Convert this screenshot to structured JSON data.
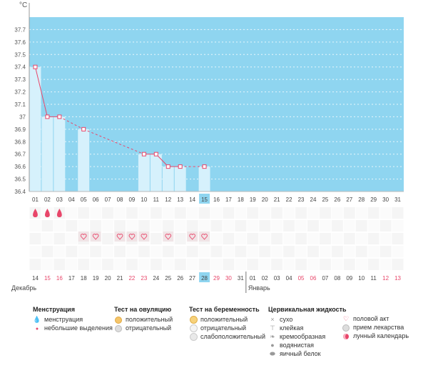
{
  "chart_data": {
    "type": "line",
    "title": "",
    "ylabel": "°C",
    "ylim": [
      36.4,
      37.8
    ],
    "yticks": [
      "36.4",
      "36.5",
      "36.6",
      "36.7",
      "36.8",
      "36.9",
      "37",
      "37.1",
      "37.2",
      "37.3",
      "37.4",
      "37.5",
      "37.6",
      "37.7"
    ],
    "cycle_days": [
      "01",
      "02",
      "03",
      "04",
      "05",
      "06",
      "07",
      "08",
      "09",
      "10",
      "11",
      "12",
      "13",
      "14",
      "15",
      "16",
      "17",
      "18",
      "19",
      "20",
      "21",
      "22",
      "23",
      "24",
      "25",
      "26",
      "27",
      "28",
      "29",
      "30",
      "31"
    ],
    "current_day": "15",
    "temperatures": [
      37.4,
      37.0,
      37.0,
      null,
      36.9,
      null,
      null,
      null,
      null,
      36.7,
      36.7,
      36.6,
      36.6,
      null,
      36.6,
      null,
      null,
      null,
      null,
      null,
      null,
      null,
      null,
      null,
      null,
      null,
      null,
      null,
      null,
      null,
      null
    ],
    "coverline": 37.7,
    "menstruation_days": [
      "01",
      "02",
      "03"
    ],
    "intercourse_days": [
      "05",
      "06",
      "08",
      "09",
      "10",
      "12",
      "14",
      "15"
    ],
    "dates": [
      "14",
      "15",
      "16",
      "17",
      "18",
      "19",
      "20",
      "21",
      "22",
      "23",
      "24",
      "25",
      "26",
      "27",
      "28",
      "29",
      "30",
      "31",
      "01",
      "02",
      "03",
      "04",
      "05",
      "06",
      "07",
      "08",
      "09",
      "10",
      "11",
      "12",
      "13"
    ],
    "highlighted_dates": [
      "15",
      "16",
      "22",
      "23",
      "29",
      "30",
      "05",
      "06",
      "12",
      "13"
    ],
    "today_date": "28",
    "month_left": "Декабрь",
    "month_right": "Январь"
  },
  "legend": {
    "menstruation": {
      "title": "Менструация",
      "items": [
        "менструация",
        "небольшие выделения"
      ]
    },
    "ovulation": {
      "title": "Тест на овуляцию",
      "items": [
        "положительный",
        "отрицательный"
      ]
    },
    "pregnancy": {
      "title": "Тест на беременность",
      "items": [
        "положительный",
        "отрицательный",
        "слабоположительный"
      ]
    },
    "cervical": {
      "title": "Цервикальная жидкость",
      "items": [
        "сухо",
        "клейкая",
        "кремообразная",
        "водянистая",
        "яичный белок"
      ]
    },
    "other": {
      "items": [
        "половой акт",
        "прием лекарства",
        "лунный календарь"
      ]
    }
  },
  "colors": {
    "plot_bg": "#8fd5f0",
    "bar": "#d6f1fc",
    "line": "#e8466a",
    "highlight": "#e8466a",
    "today": "#8fd5f0"
  }
}
